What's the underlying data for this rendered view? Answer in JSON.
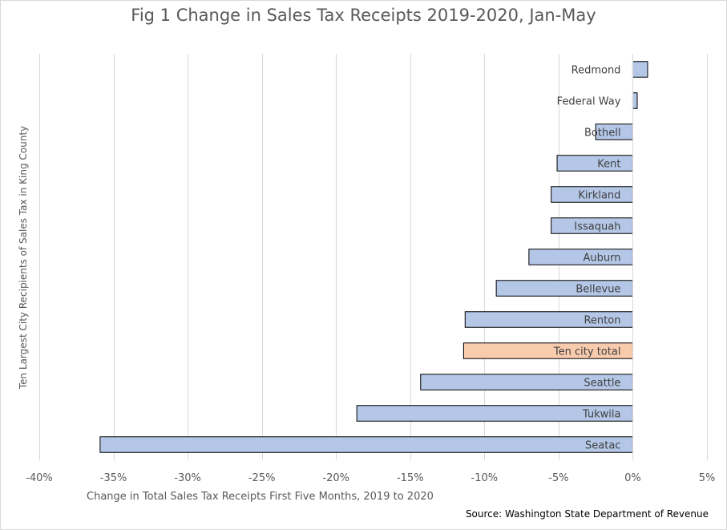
{
  "chart_data": {
    "type": "bar",
    "orientation": "horizontal",
    "title": "Fig 1 Change in Sales Tax Receipts 2019-2020, Jan-May",
    "xlabel": "Change in Total Sales Tax Receipts First Five Months, 2019 to 2020",
    "ylabel": "Ten Largest City Recipients of Sales Tax in King County",
    "source": "Source: Washington State Department of Revenue",
    "xlim": [
      -40,
      5
    ],
    "x_tick_values": [
      -40,
      -35,
      -30,
      -25,
      -20,
      -15,
      -10,
      -5,
      0,
      5
    ],
    "x_tick_labels": [
      "-40%",
      "-35%",
      "-30%",
      "-25%",
      "-20%",
      "-15%",
      "-10%",
      "-5%",
      "0%",
      "5%"
    ],
    "grid": "vertical",
    "categories": [
      "Redmond",
      "Federal Way",
      "Bothell",
      "Kent",
      "Kirkland",
      "Issaquah",
      "Auburn",
      "Bellevue",
      "Renton",
      "Ten city total",
      "Seattle",
      "Tukwila",
      "Seatac"
    ],
    "values": [
      1.0,
      0.3,
      -2.5,
      -5.1,
      -5.5,
      -5.5,
      -7.0,
      -9.2,
      -11.3,
      -11.4,
      -14.3,
      -18.6,
      -35.9
    ],
    "unit": "%",
    "colors": {
      "bar": "#b4c7e7",
      "highlight": "#f8cbad",
      "bar_border": "#000000",
      "grid": "#d9d9d9"
    },
    "highlight_category": "Ten city total"
  }
}
